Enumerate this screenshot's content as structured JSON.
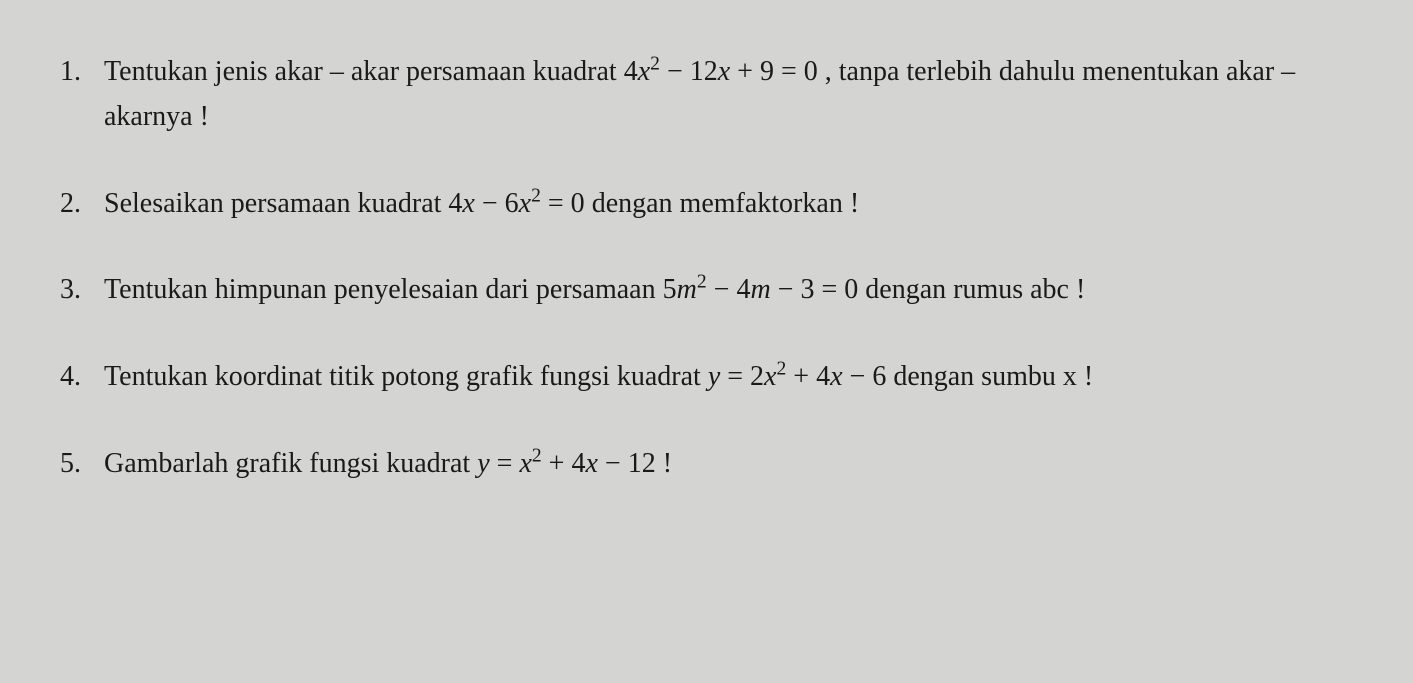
{
  "document": {
    "background_color": "#d4d4d2",
    "text_color": "#1a1a1a",
    "font_family": "Times New Roman",
    "font_size_pt": 28,
    "line_height": 1.6
  },
  "questions": [
    {
      "number": "1.",
      "text_before": "Tentukan jenis akar – akar persamaan kuadrat  ",
      "equation": "4x² −  12x + 9 = 0",
      "text_after": "  , tanpa terlebih dahulu menentukan akar – akarnya !",
      "equation_parts": {
        "coef1": "4",
        "var1": "x",
        "exp1": "2",
        "op1": " − ",
        "coef2": " 12",
        "var2": "x",
        "op2": " + ",
        "coef3": "9",
        "eq": " = 0"
      }
    },
    {
      "number": "2.",
      "text_before": "Selesaikan persamaan kuadrat  ",
      "equation": "4x − 6x² = 0",
      "text_after": " dengan memfaktorkan !",
      "equation_parts": {
        "coef1": "4",
        "var1": "x",
        "op1": " − ",
        "coef2": "6",
        "var2": "x",
        "exp2": "2",
        "eq": " = 0"
      }
    },
    {
      "number": "3.",
      "text_before": "Tentukan himpunan penyelesaian dari persamaan ",
      "equation": "5m² −  4m − 3 = 0",
      "text_after": " dengan rumus abc !",
      "equation_parts": {
        "coef1": "5",
        "var1": "m",
        "exp1": "2",
        "op1": " − ",
        "coef2": " 4",
        "var2": "m",
        "op2": " − ",
        "coef3": "3",
        "eq": " = 0"
      }
    },
    {
      "number": "4.",
      "text_before": "Tentukan koordinat titik potong grafik fungsi kuadrat ",
      "equation": "y = 2x² +  4x − 6",
      "text_after": "  dengan sumbu x !",
      "equation_parts": {
        "lhs_var": "y",
        "eq1": " = ",
        "coef1": "2",
        "var1": "x",
        "exp1": "2",
        "op1": " + ",
        "coef2": " 4",
        "var2": "x",
        "op2": " − ",
        "coef3": "6"
      }
    },
    {
      "number": "5.",
      "text_before": "Gambarlah grafik fungsi kuadrat  ",
      "equation": "y =  x²  + 4x − 12",
      "text_after": " !",
      "equation_parts": {
        "lhs_var": "y",
        "eq1": " = ",
        "sp1": " ",
        "var1": "x",
        "exp1": "2",
        "op1": "  + ",
        "coef2": "4",
        "var2": "x",
        "op2": " − ",
        "coef3": "12"
      }
    }
  ]
}
